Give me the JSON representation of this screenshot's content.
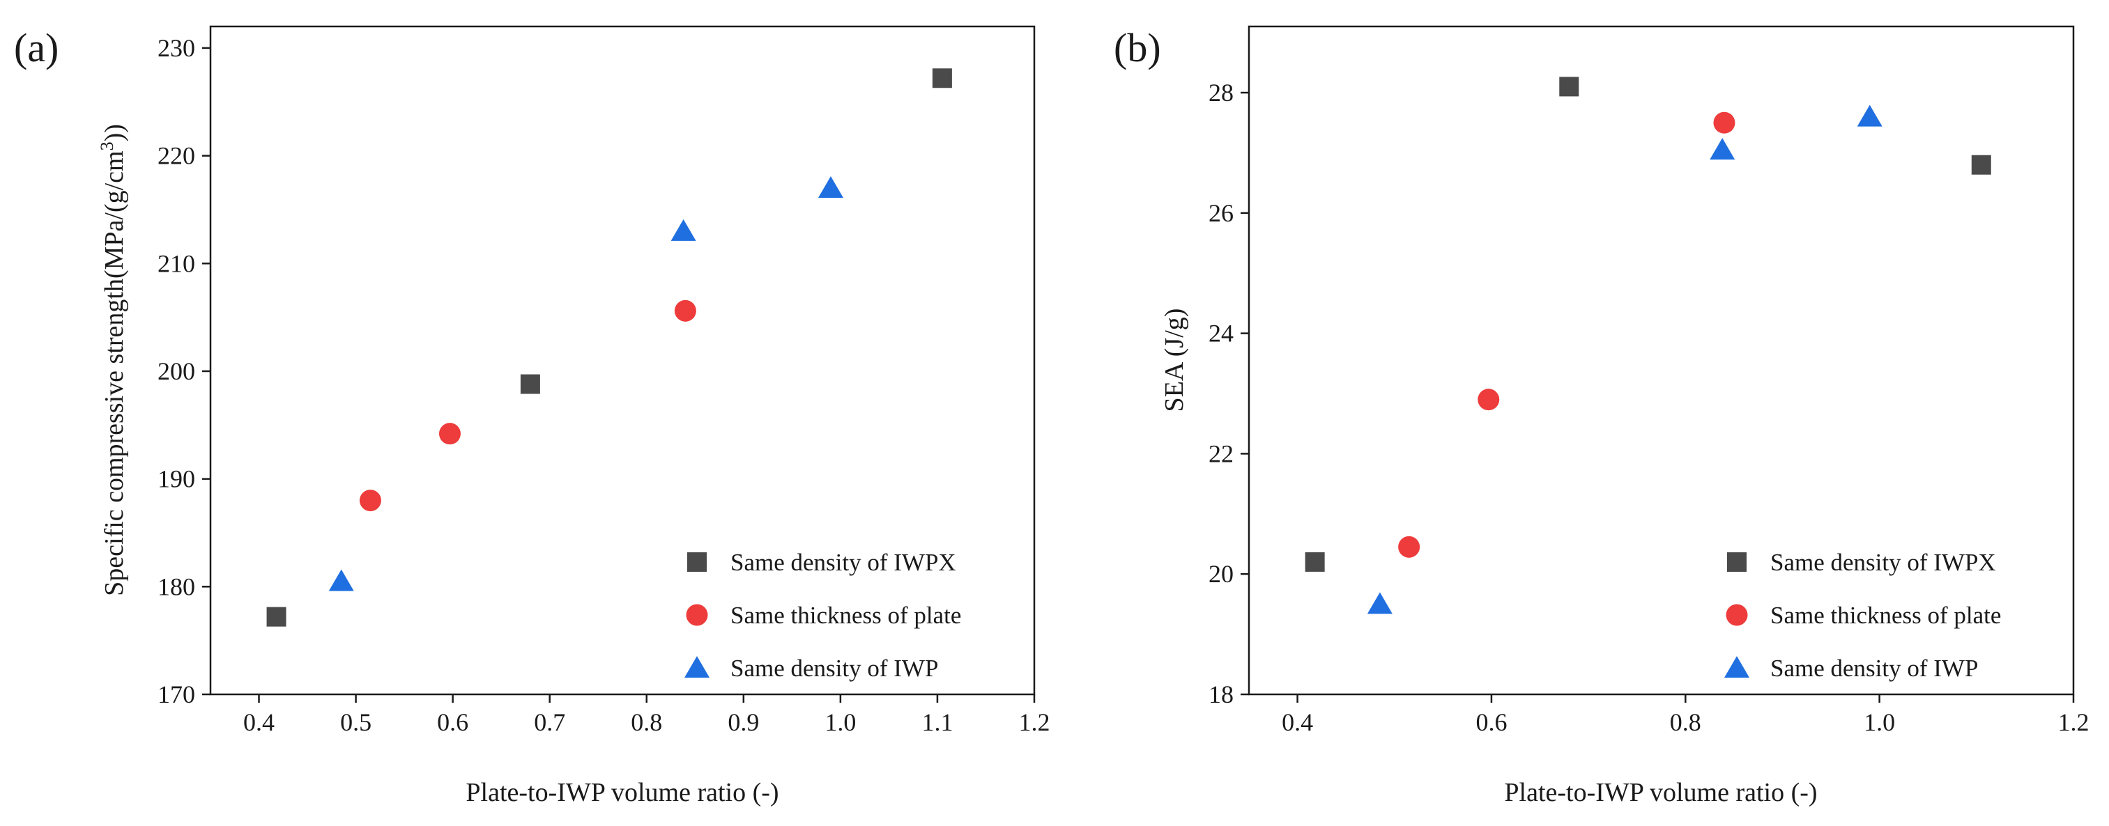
{
  "colors": {
    "square": "#4a4a4a",
    "circle": "#ee3b3b",
    "triangle": "#1f6fe0",
    "axis": "#1a1a1a"
  },
  "chart_data": [
    {
      "type": "scatter",
      "panel": "(a)",
      "xlabel": "Plate-to-IWP volume ratio (-)",
      "ylabel_main": "Specific compressive strength(MPa/(g/cm",
      "ylabel_sup": "3",
      "ylabel_end": "))",
      "xlim": [
        0.35,
        1.2
      ],
      "ylim": [
        170,
        232
      ],
      "xticks": [
        0.4,
        0.5,
        0.6,
        0.7,
        0.8,
        0.9,
        1.0,
        1.1,
        1.2
      ],
      "xtick_labels": [
        "0.4",
        "0.5",
        "0.6",
        "0.7",
        "0.8",
        "0.9",
        "1.0",
        "1.1",
        "1.2"
      ],
      "yticks": [
        170,
        180,
        190,
        200,
        210,
        220,
        230
      ],
      "ytick_labels": [
        "170",
        "180",
        "190",
        "200",
        "210",
        "220",
        "230"
      ],
      "legend_position": "bottom-right",
      "series": [
        {
          "name": "Same density of IWPX",
          "marker": "square",
          "x": [
            0.418,
            0.68,
            1.105
          ],
          "y": [
            177.2,
            198.8,
            227.2
          ]
        },
        {
          "name": "Same thickness of plate",
          "marker": "circle",
          "x": [
            0.515,
            0.597,
            0.84
          ],
          "y": [
            188.0,
            194.2,
            205.6
          ]
        },
        {
          "name": "Same density of IWP",
          "marker": "triangle",
          "x": [
            0.485,
            0.838,
            0.99
          ],
          "y": [
            180.5,
            213.0,
            217.0
          ]
        }
      ]
    },
    {
      "type": "scatter",
      "panel": "(b)",
      "xlabel": "Plate-to-IWP volume ratio (-)",
      "ylabel_main": "SEA (J/g)",
      "ylabel_sup": "",
      "ylabel_end": "",
      "xlim": [
        0.35,
        1.2
      ],
      "ylim": [
        18,
        29.1
      ],
      "xticks": [
        0.4,
        0.6,
        0.8,
        1.0,
        1.2
      ],
      "xtick_labels": [
        "0.4",
        "0.6",
        "0.8",
        "1.0",
        "1.2"
      ],
      "yticks": [
        18,
        20,
        22,
        24,
        26,
        28
      ],
      "ytick_labels": [
        "18",
        "20",
        "22",
        "24",
        "26",
        "28"
      ],
      "legend_position": "bottom-right",
      "series": [
        {
          "name": "Same density of IWPX",
          "marker": "square",
          "x": [
            0.418,
            0.68,
            1.105
          ],
          "y": [
            20.2,
            28.1,
            26.8
          ]
        },
        {
          "name": "Same thickness of plate",
          "marker": "circle",
          "x": [
            0.515,
            0.597,
            0.84
          ],
          "y": [
            20.45,
            22.9,
            27.5
          ]
        },
        {
          "name": "Same density of IWP",
          "marker": "triangle",
          "x": [
            0.485,
            0.838,
            0.99
          ],
          "y": [
            19.5,
            27.05,
            27.6
          ]
        }
      ]
    }
  ]
}
